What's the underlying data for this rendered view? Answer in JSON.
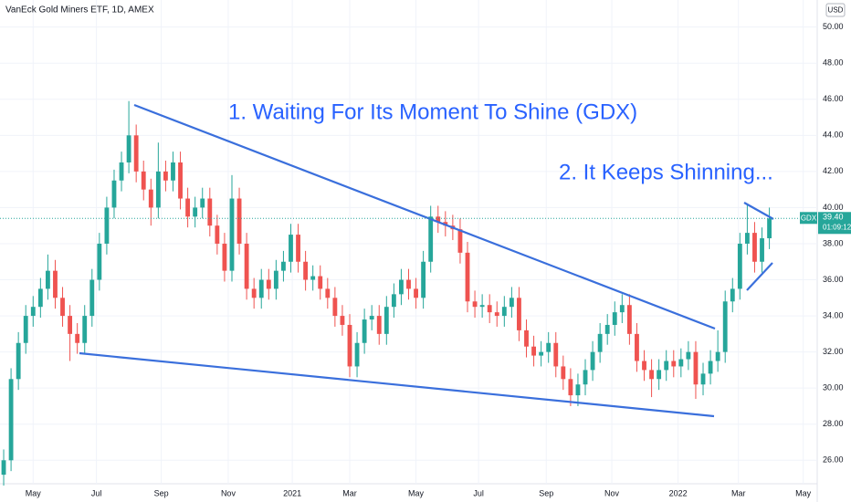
{
  "chart_data": {
    "type": "candlestick",
    "title": "VanEck Gold Miners ETF, 1D, AMEX",
    "annotations": [
      "1. Waiting For Its Moment To Shine (GDX)",
      "2. It Keeps Shinning..."
    ],
    "currency": "USD",
    "symbol": "GDX",
    "price_label": "39.40",
    "countdown": "01:09:12",
    "up_color": "#26a69a",
    "down_color": "#ef5350",
    "open": [
      25.2,
      26.0,
      30.5,
      32.5,
      34.0,
      34.5,
      35.5,
      36.5,
      35.0,
      34.0,
      33.0,
      32.5,
      34.0,
      36.0,
      38.0,
      40.0,
      41.5,
      42.5,
      44.0,
      42.0,
      41.0,
      40.0,
      42.0,
      41.5,
      42.5,
      40.5,
      39.5,
      40.0,
      40.5,
      39.0,
      38.0,
      36.5,
      40.5,
      38.0,
      35.5,
      35.0,
      36.0,
      35.5,
      36.5,
      37.0,
      38.5,
      37.0,
      36.0,
      36.2,
      35.5,
      35.0,
      34.0,
      33.5,
      31.2,
      32.5,
      33.8,
      34.0,
      33.0,
      34.5,
      35.2,
      36.0,
      35.5,
      35.0,
      37.0,
      39.5,
      39.2,
      39.0,
      38.8,
      37.5,
      34.8,
      34.5,
      34.6,
      34.2,
      34.0,
      34.5,
      35.0,
      33.2,
      32.3,
      31.8,
      32.0,
      32.5,
      31.2,
      30.5,
      29.6,
      30.2,
      31.0,
      32.0,
      33.0,
      33.5,
      34.2,
      34.6,
      33.0,
      31.5,
      31.0,
      30.5,
      31.0,
      31.5,
      31.2,
      31.6,
      32.0,
      30.2,
      30.8,
      31.5,
      32.0,
      34.8,
      35.5,
      38.0,
      38.6,
      37.0,
      38.3
    ],
    "high": [
      26.6,
      31.1,
      33.1,
      34.6,
      35.1,
      36.1,
      37.4,
      37.1,
      35.6,
      34.6,
      33.6,
      34.6,
      36.6,
      38.6,
      40.6,
      42.1,
      43.1,
      45.9,
      44.6,
      42.6,
      41.6,
      43.6,
      42.6,
      43.1,
      43.1,
      41.1,
      40.6,
      41.1,
      41.1,
      39.6,
      38.6,
      41.8,
      41.1,
      38.6,
      36.1,
      36.6,
      36.6,
      37.1,
      37.6,
      39.1,
      39.1,
      37.6,
      36.8,
      36.8,
      36.1,
      35.6,
      34.6,
      34.1,
      33.1,
      34.4,
      34.6,
      34.6,
      35.1,
      35.8,
      36.6,
      36.6,
      36.1,
      37.6,
      40.1,
      40.1,
      39.8,
      39.6,
      39.4,
      38.1,
      35.4,
      35.2,
      35.2,
      34.8,
      35.1,
      35.6,
      35.6,
      33.8,
      32.9,
      32.6,
      33.1,
      33.1,
      31.8,
      31.1,
      30.8,
      31.6,
      32.6,
      33.6,
      34.1,
      34.8,
      35.2,
      35.2,
      33.6,
      32.1,
      31.6,
      31.6,
      32.1,
      32.1,
      32.2,
      32.6,
      32.6,
      31.4,
      32.1,
      33.2,
      35.4,
      36.1,
      38.6,
      40.2,
      39.2,
      38.9,
      40.0
    ],
    "low": [
      24.6,
      25.4,
      29.9,
      31.9,
      33.4,
      33.9,
      34.9,
      34.4,
      33.4,
      31.5,
      31.9,
      31.9,
      33.4,
      35.4,
      37.4,
      39.4,
      40.9,
      41.9,
      41.4,
      40.4,
      39.0,
      39.4,
      40.9,
      40.9,
      39.9,
      38.9,
      38.9,
      39.4,
      38.4,
      37.4,
      35.9,
      35.9,
      37.4,
      34.9,
      34.4,
      34.4,
      34.9,
      34.9,
      35.9,
      36.4,
      36.4,
      35.4,
      35.4,
      34.9,
      34.4,
      33.4,
      32.9,
      30.6,
      30.6,
      31.9,
      33.2,
      32.4,
      32.4,
      33.9,
      34.6,
      34.9,
      34.4,
      34.4,
      36.4,
      38.6,
      38.4,
      38.2,
      36.9,
      34.2,
      33.9,
      33.9,
      33.6,
      33.4,
      33.4,
      33.9,
      32.6,
      31.7,
      31.2,
      31.2,
      31.4,
      30.6,
      29.9,
      29.0,
      29.0,
      29.6,
      30.4,
      31.4,
      32.4,
      32.9,
      33.6,
      32.4,
      30.9,
      30.4,
      29.5,
      29.9,
      30.4,
      30.6,
      30.6,
      31.0,
      29.4,
      29.6,
      30.2,
      30.9,
      31.4,
      34.2,
      34.9,
      37.4,
      36.4,
      36.4,
      37.7
    ],
    "close": [
      26.0,
      30.5,
      32.5,
      34.0,
      34.5,
      35.5,
      36.5,
      35.0,
      34.0,
      33.0,
      32.5,
      34.0,
      36.0,
      38.0,
      40.0,
      41.5,
      42.5,
      44.0,
      42.0,
      41.0,
      40.0,
      42.0,
      41.5,
      42.5,
      40.5,
      39.5,
      40.0,
      40.5,
      39.0,
      38.0,
      36.5,
      40.5,
      38.0,
      35.5,
      35.0,
      36.0,
      35.5,
      36.5,
      37.0,
      38.5,
      37.0,
      36.0,
      36.2,
      35.5,
      35.0,
      34.0,
      33.5,
      31.2,
      32.5,
      33.8,
      34.0,
      33.0,
      34.5,
      35.2,
      36.0,
      35.5,
      35.0,
      37.0,
      39.5,
      39.2,
      39.0,
      38.8,
      37.5,
      34.8,
      34.5,
      34.6,
      34.2,
      34.0,
      34.5,
      35.0,
      33.2,
      32.3,
      31.8,
      32.0,
      32.5,
      31.2,
      30.5,
      29.6,
      30.2,
      31.0,
      32.0,
      33.0,
      33.5,
      34.2,
      34.6,
      33.0,
      31.5,
      31.0,
      30.5,
      31.0,
      31.5,
      31.2,
      31.6,
      32.0,
      30.2,
      30.8,
      31.5,
      32.0,
      34.8,
      35.5,
      38.0,
      38.6,
      37.0,
      38.3,
      39.4
    ],
    "xlim": [
      -0.5,
      110.5
    ],
    "xticks": [
      {
        "value": 4,
        "label": "May"
      },
      {
        "value": 12.6,
        "label": "Jul"
      },
      {
        "value": 21.4,
        "label": "Sep"
      },
      {
        "value": 30.5,
        "label": "Nov"
      },
      {
        "value": 39.2,
        "label": "2021"
      },
      {
        "value": 47,
        "label": "Mar"
      },
      {
        "value": 56,
        "label": "May"
      },
      {
        "value": 64.5,
        "label": "Jul"
      },
      {
        "value": 73.7,
        "label": "Sep"
      },
      {
        "value": 82.6,
        "label": "Nov"
      },
      {
        "value": 91.6,
        "label": "2022"
      },
      {
        "value": 99.8,
        "label": "Mar"
      },
      {
        "value": 108.6,
        "label": "May"
      }
    ],
    "ylim": [
      24.7,
      51.5
    ],
    "yticks": [
      {
        "value": 26,
        "label": "26.00"
      },
      {
        "value": 28,
        "label": "28.00"
      },
      {
        "value": 30,
        "label": "30.00"
      },
      {
        "value": 32,
        "label": "32.00"
      },
      {
        "value": 34,
        "label": "34.00"
      },
      {
        "value": 36,
        "label": "36.00"
      },
      {
        "value": 38,
        "label": "38.00"
      },
      {
        "value": 40,
        "label": "40.00"
      },
      {
        "value": 42,
        "label": "42.00"
      },
      {
        "value": 44,
        "label": "44.00"
      },
      {
        "value": 46,
        "label": "46.00"
      },
      {
        "value": 48,
        "label": "48.00"
      },
      {
        "value": 50,
        "label": "50.00"
      }
    ]
  }
}
